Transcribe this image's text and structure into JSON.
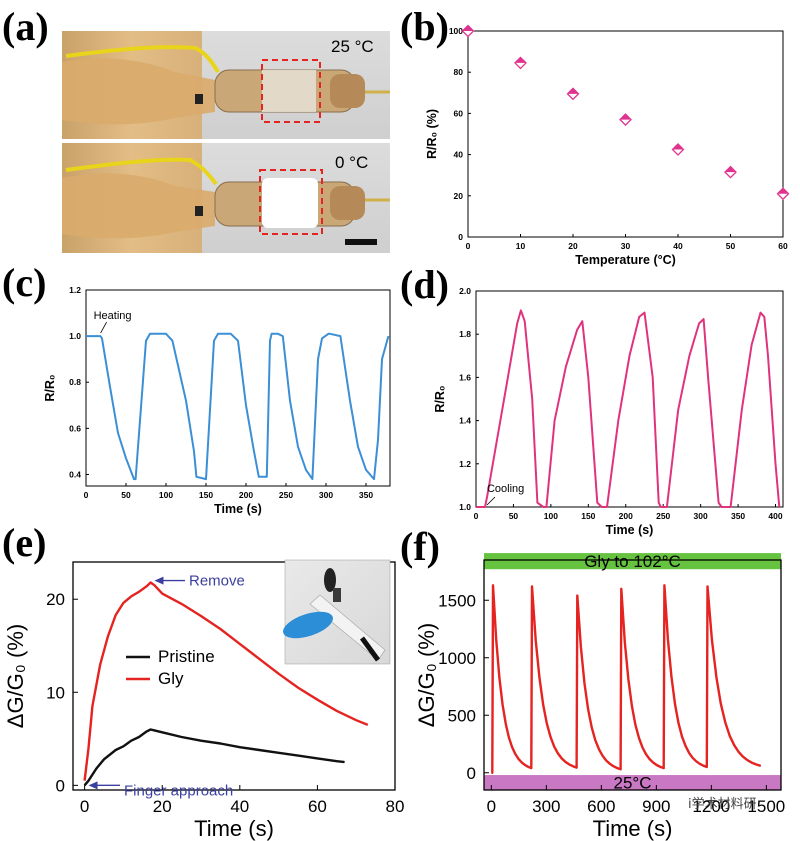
{
  "panels": {
    "a": "(a)",
    "b": "(b)",
    "c": "(c)",
    "d": "(d)",
    "e": "(e)",
    "f": "(f)"
  },
  "photo_a": {
    "top_label": "25 °C",
    "bottom_label": "0 °C"
  },
  "watermark": "i学术材料研",
  "colors": {
    "magenta": "#e0338f",
    "blue": "#3b8fd6",
    "pink": "#e0337e",
    "red": "#e52320",
    "black": "#111111",
    "arrow_blue": "#3b3f9f",
    "band_green": "#66c33f",
    "band_pink": "#c978c4"
  },
  "chart_data": [
    {
      "id": "b",
      "type": "scatter",
      "title": "",
      "xlabel": "Temperature (°C)",
      "ylabel": "R/R₀ (%)",
      "xlim": [
        0,
        60
      ],
      "ylim": [
        0,
        100
      ],
      "xticks": [
        0,
        10,
        20,
        30,
        40,
        50,
        60
      ],
      "yticks": [
        0,
        20,
        40,
        60,
        80,
        100
      ],
      "x": [
        0,
        10,
        20,
        30,
        40,
        50,
        60
      ],
      "y": [
        100,
        84.5,
        69.5,
        57,
        42.5,
        31.5,
        21
      ],
      "marker": "half-filled diamond",
      "color": "#e0338f",
      "grid": false
    },
    {
      "id": "c",
      "type": "line",
      "xlabel": "Time (s)",
      "ylabel": "R/R₀",
      "xlim": [
        0,
        380
      ],
      "ylim": [
        0.35,
        1.2
      ],
      "xticks": [
        0,
        50,
        100,
        150,
        200,
        250,
        300,
        350
      ],
      "yticks": [
        0.4,
        0.6,
        0.8,
        1.0,
        1.2
      ],
      "ytick_labels": [
        "0.4",
        "0.6",
        "0.8",
        "1.0",
        "1.2"
      ],
      "annotation": {
        "text": "Heating",
        "x": 17,
        "y": 1.0
      },
      "color": "#3b8fd6",
      "series": [
        {
          "x": [
            0,
            18,
            20,
            30,
            40,
            50,
            60,
            62,
            75,
            80,
            84,
            100,
            108,
            125,
            135,
            138,
            150,
            160,
            165,
            181,
            190,
            200,
            210,
            216,
            226,
            230,
            232,
            240,
            246,
            255,
            265,
            275,
            283,
            290,
            295,
            303,
            305,
            318,
            330,
            340,
            350,
            360,
            365,
            370,
            378
          ],
          "y": [
            1.0,
            1.0,
            0.99,
            0.78,
            0.58,
            0.47,
            0.38,
            0.38,
            0.98,
            1.01,
            1.01,
            1.01,
            0.98,
            0.72,
            0.5,
            0.39,
            0.38,
            0.98,
            1.01,
            1.01,
            0.98,
            0.7,
            0.5,
            0.39,
            0.39,
            0.98,
            1.01,
            1.01,
            1.0,
            0.72,
            0.52,
            0.42,
            0.38,
            0.9,
            0.99,
            1.01,
            1.01,
            1.0,
            0.72,
            0.52,
            0.42,
            0.38,
            0.55,
            0.9,
            1.0
          ]
        }
      ],
      "grid": false
    },
    {
      "id": "d",
      "type": "line",
      "xlabel": "Time (s)",
      "ylabel": "R/R₀",
      "xlim": [
        0,
        410
      ],
      "ylim": [
        1.0,
        2.0
      ],
      "xticks": [
        0,
        50,
        100,
        150,
        200,
        250,
        300,
        350,
        400
      ],
      "yticks": [
        1.0,
        1.2,
        1.4,
        1.6,
        1.8,
        2.0
      ],
      "ytick_labels": [
        "1.0",
        "1.2",
        "1.4",
        "1.6",
        "1.8",
        "2.0"
      ],
      "annotation": {
        "text": "Cooling",
        "x": 12,
        "y": 1.0
      },
      "color": "#e0337e",
      "series": [
        {
          "x": [
            0,
            12,
            15,
            25,
            40,
            55,
            60,
            65,
            75,
            82,
            90,
            94,
            105,
            120,
            135,
            142,
            150,
            162,
            168,
            175,
            190,
            205,
            218,
            225,
            236,
            244,
            247,
            255,
            270,
            285,
            298,
            304,
            310,
            324,
            328,
            340,
            355,
            368,
            380,
            385,
            390,
            400,
            405
          ],
          "y": [
            1.0,
            1.0,
            1.05,
            1.25,
            1.55,
            1.85,
            1.91,
            1.86,
            1.5,
            1.02,
            1.0,
            1.0,
            1.4,
            1.65,
            1.82,
            1.86,
            1.6,
            1.02,
            1.0,
            1.0,
            1.4,
            1.7,
            1.88,
            1.9,
            1.6,
            1.02,
            1.0,
            1.0,
            1.45,
            1.7,
            1.85,
            1.87,
            1.6,
            1.02,
            1.0,
            1.0,
            1.45,
            1.75,
            1.9,
            1.88,
            1.7,
            1.2,
            1.0
          ]
        }
      ],
      "grid": false
    },
    {
      "id": "e",
      "type": "line",
      "xlabel": "Time (s)",
      "ylabel": "ΔG/G₀ (%)",
      "xlim": [
        -3,
        80
      ],
      "ylim": [
        -0.5,
        24
      ],
      "xticks": [
        0,
        20,
        40,
        60,
        80
      ],
      "yticks": [
        0,
        10,
        20
      ],
      "legend": "center-left",
      "annotations": [
        {
          "text": "Remove",
          "x": 18,
          "y": 22
        },
        {
          "text": "Finger approach",
          "x": 1,
          "y": 0
        }
      ],
      "series": [
        {
          "name": "Gly",
          "color": "#e52320",
          "x": [
            0,
            1,
            2,
            4,
            6,
            8,
            10,
            12,
            14,
            16,
            17,
            18,
            20,
            25,
            30,
            35,
            40,
            45,
            50,
            55,
            60,
            65,
            70,
            73
          ],
          "y": [
            0.5,
            4,
            8.5,
            13,
            16,
            18.3,
            19.6,
            20.3,
            20.8,
            21.4,
            21.8,
            21.5,
            20.6,
            19.5,
            18.2,
            16.8,
            15.2,
            13.6,
            12,
            10.5,
            9.2,
            8,
            7,
            6.5
          ]
        },
        {
          "name": "Pristine",
          "color": "#111111",
          "x": [
            0,
            1,
            3,
            5,
            8,
            10,
            12,
            14,
            16,
            17,
            18,
            20,
            25,
            30,
            35,
            40,
            45,
            50,
            55,
            60,
            65,
            67
          ],
          "y": [
            0,
            0.5,
            1.8,
            2.8,
            3.8,
            4.2,
            4.8,
            5.2,
            5.8,
            6.0,
            5.9,
            5.7,
            5.2,
            4.8,
            4.5,
            4.1,
            3.8,
            3.5,
            3.2,
            2.9,
            2.6,
            2.5
          ]
        }
      ],
      "grid": false
    },
    {
      "id": "f",
      "type": "line",
      "xlabel": "Time (s)",
      "ylabel": "ΔG/G₀ (%)",
      "xlim": [
        -40,
        1580
      ],
      "ylim": [
        -150,
        1850
      ],
      "xticks": [
        0,
        300,
        600,
        900,
        1200,
        1500
      ],
      "xtick_labels": [
        "0",
        "300",
        "600",
        "900",
        "1200",
        "1500"
      ],
      "yticks": [
        0,
        500,
        1000,
        1500
      ],
      "bands": [
        {
          "text": "Gly to 102°C",
          "ymin": 1770,
          "ymax": 1910,
          "color": "#66c33f"
        },
        {
          "text": "25°C",
          "ymin": -150,
          "ymax": -20,
          "color": "#c978c4"
        }
      ],
      "series": [
        {
          "name": "",
          "color": "#e52320",
          "peaks": [
            {
              "start": 5,
              "peak": 1630,
              "end": 218,
              "end_value": 40
            },
            {
              "start": 218,
              "peak": 1620,
              "end": 465,
              "end_value": 45
            },
            {
              "start": 465,
              "peak": 1540,
              "end": 705,
              "end_value": 30
            },
            {
              "start": 705,
              "peak": 1600,
              "end": 940,
              "end_value": 40
            },
            {
              "start": 940,
              "peak": 1630,
              "end": 1175,
              "end_value": 50
            },
            {
              "start": 1175,
              "peak": 1620,
              "end": 1470,
              "end_value": 60
            }
          ]
        }
      ],
      "grid": false
    }
  ]
}
